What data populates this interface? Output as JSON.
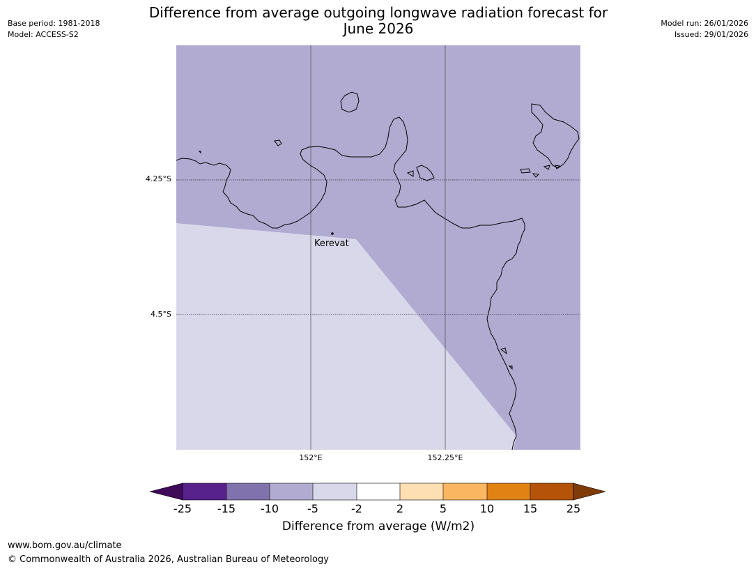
{
  "header": {
    "base_period": "Base period: 1981-2018",
    "model": "Model: ACCESS-S2",
    "model_run": "Model run: 26/01/2026",
    "issued": "Issued: 29/01/2026",
    "title_line1": "Difference from average outgoing longwave radiation forecast for",
    "title_line2": "June 2026"
  },
  "map": {
    "place_label": "Kerevat",
    "lat_labels": [
      "4.25°S",
      "4.5°S"
    ],
    "lon_labels": [
      "152°E",
      "152.25°E"
    ],
    "colors": {
      "band_minus10_minus5": "#b1abd2",
      "band_minus5_minus2": "#d8d8ea",
      "coastline": "#000000"
    }
  },
  "colorbar": {
    "title": "Difference from average (W/m2)",
    "ticks": [
      "-25",
      "-15",
      "-10",
      "-5",
      "-2",
      "2",
      "5",
      "10",
      "15",
      "25"
    ],
    "colors": [
      "#3f0a5a",
      "#58228c",
      "#8073ad",
      "#b1abd2",
      "#d8d8ea",
      "#ffffff",
      "#fedfb3",
      "#fbb661",
      "#e18214",
      "#b55408",
      "#7f3b08"
    ]
  },
  "footer": {
    "url": "www.bom.gov.au/climate",
    "copyright": "© Commonwealth of Australia 2026, Australian Bureau of Meteorology"
  }
}
